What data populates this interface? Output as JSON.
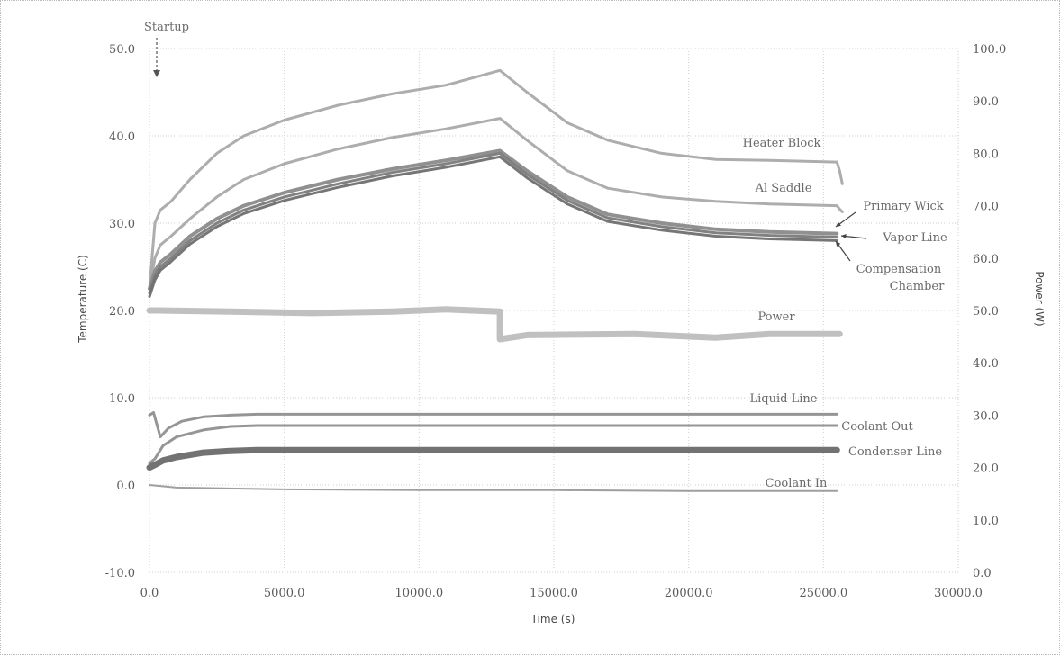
{
  "chart_data": {
    "type": "line",
    "xlabel": "Time (s)",
    "ylabel": "Temperature (C)",
    "y2label": "Power (W)",
    "xlim": [
      0,
      30000
    ],
    "ylim": [
      -10,
      50
    ],
    "y2lim": [
      0,
      100
    ],
    "grid": true,
    "x_ticks": [
      "0.0",
      "5000.0",
      "10000.0",
      "15000.0",
      "20000.0",
      "25000.0",
      "30000.0"
    ],
    "y_ticks": [
      "-10.0",
      "0.0",
      "10.0",
      "20.0",
      "30.0",
      "40.0",
      "50.0"
    ],
    "y2_ticks": [
      "0.0",
      "10.0",
      "20.0",
      "30.0",
      "40.0",
      "50.0",
      "60.0",
      "70.0",
      "80.0",
      "90.0",
      "100.0"
    ],
    "annotation": {
      "text": "Startup",
      "x": 250,
      "y": 48.5
    },
    "series": [
      {
        "name": "Heater Block",
        "axis": "left",
        "color": "#a9a9a9",
        "width": 3,
        "x": [
          0,
          200,
          400,
          800,
          1500,
          2500,
          3500,
          5000,
          7000,
          9000,
          11000,
          13000,
          14000,
          15500,
          17000,
          19000,
          21000,
          23000,
          25500,
          25600,
          25700
        ],
        "y": [
          22.5,
          30,
          31.5,
          32.5,
          35,
          38,
          40,
          41.8,
          43.5,
          44.8,
          45.8,
          47.5,
          45,
          41.5,
          39.5,
          38,
          37.3,
          37.2,
          37,
          36,
          34.5
        ]
      },
      {
        "name": "Al Saddle",
        "axis": "left",
        "color": "#a9a9a9",
        "width": 3,
        "x": [
          0,
          200,
          400,
          800,
          1500,
          2500,
          3500,
          5000,
          7000,
          9000,
          11000,
          13000,
          14000,
          15500,
          17000,
          19000,
          21000,
          23000,
          25500,
          25600,
          25700
        ],
        "y": [
          22.5,
          26,
          27.5,
          28.5,
          30.5,
          33,
          35,
          36.8,
          38.5,
          39.8,
          40.8,
          42,
          39.5,
          36,
          34,
          33,
          32.5,
          32.2,
          32,
          31.6,
          31.3
        ]
      },
      {
        "name": "Primary Wick",
        "axis": "left",
        "color": "#8a8a8a",
        "width": 4,
        "x": [
          0,
          200,
          400,
          800,
          1500,
          2500,
          3500,
          5000,
          7000,
          9000,
          11000,
          13000,
          14000,
          15500,
          17000,
          19000,
          21000,
          23000,
          25500
        ],
        "y": [
          22.5,
          24.5,
          25.5,
          26.5,
          28.5,
          30.5,
          32,
          33.5,
          35,
          36.2,
          37.2,
          38.3,
          36,
          33,
          31,
          30,
          29.3,
          29,
          28.8
        ]
      },
      {
        "name": "Vapor Line",
        "axis": "left",
        "color": "#7a7a7a",
        "width": 3,
        "x": [
          0,
          200,
          400,
          800,
          1500,
          2500,
          3500,
          5000,
          7000,
          9000,
          11000,
          13000,
          14000,
          15500,
          17000,
          19000,
          21000,
          23000,
          25500
        ],
        "y": [
          22,
          24,
          25,
          26,
          28,
          30,
          31.5,
          33,
          34.5,
          35.8,
          36.8,
          38,
          35.6,
          32.6,
          30.6,
          29.6,
          28.9,
          28.6,
          28.4
        ]
      },
      {
        "name": "Compensation Chamber",
        "axis": "left",
        "color": "#6f6f6f",
        "width": 3,
        "x": [
          0,
          200,
          400,
          800,
          1500,
          2500,
          3500,
          5000,
          7000,
          9000,
          11000,
          13000,
          14000,
          15500,
          17000,
          19000,
          21000,
          23000,
          25500
        ],
        "y": [
          21.6,
          23.5,
          24.6,
          25.6,
          27.6,
          29.6,
          31.1,
          32.6,
          34.1,
          35.4,
          36.4,
          37.6,
          35.2,
          32.2,
          30.2,
          29.2,
          28.5,
          28.2,
          28
        ]
      },
      {
        "name": "Power",
        "axis": "right",
        "color": "#bdbdbd",
        "width": 7,
        "x": [
          0,
          300,
          3000,
          6000,
          9000,
          11000,
          13000,
          13000,
          14000,
          18000,
          21000,
          23000,
          25600
        ],
        "y": [
          50,
          50,
          49.8,
          49.5,
          49.8,
          50.2,
          49.8,
          44.5,
          45.3,
          45.5,
          44.8,
          45.5,
          45.5
        ]
      },
      {
        "name": "Liquid Line",
        "axis": "left",
        "color": "#8f8f8f",
        "width": 3,
        "x": [
          0,
          150,
          400,
          700,
          1200,
          2000,
          3000,
          4000,
          6000,
          10000,
          15000,
          20000,
          25500
        ],
        "y": [
          8,
          8.3,
          5.5,
          6.5,
          7.3,
          7.8,
          8,
          8.1,
          8.1,
          8.1,
          8.1,
          8.1,
          8.1
        ]
      },
      {
        "name": "Coolant Out",
        "axis": "left",
        "color": "#8f8f8f",
        "width": 3,
        "x": [
          0,
          200,
          500,
          1000,
          2000,
          3000,
          4000,
          6000,
          10000,
          15000,
          20000,
          25500
        ],
        "y": [
          2.5,
          3,
          4.5,
          5.5,
          6.3,
          6.7,
          6.8,
          6.8,
          6.8,
          6.8,
          6.8,
          6.8
        ]
      },
      {
        "name": "Condenser Line",
        "axis": "left",
        "color": "#6a6a6a",
        "width": 7,
        "x": [
          0,
          200,
          500,
          1000,
          2000,
          3000,
          4000,
          6000,
          10000,
          15000,
          20000,
          25500
        ],
        "y": [
          2,
          2.3,
          2.8,
          3.2,
          3.7,
          3.9,
          4,
          4,
          4,
          4,
          4,
          4
        ]
      },
      {
        "name": "Coolant In",
        "axis": "left",
        "color": "#9a9a9a",
        "width": 2,
        "x": [
          0,
          1000,
          5000,
          10000,
          15000,
          20000,
          25500
        ],
        "y": [
          0,
          -0.3,
          -0.5,
          -0.6,
          -0.6,
          -0.7,
          -0.7
        ]
      }
    ]
  }
}
